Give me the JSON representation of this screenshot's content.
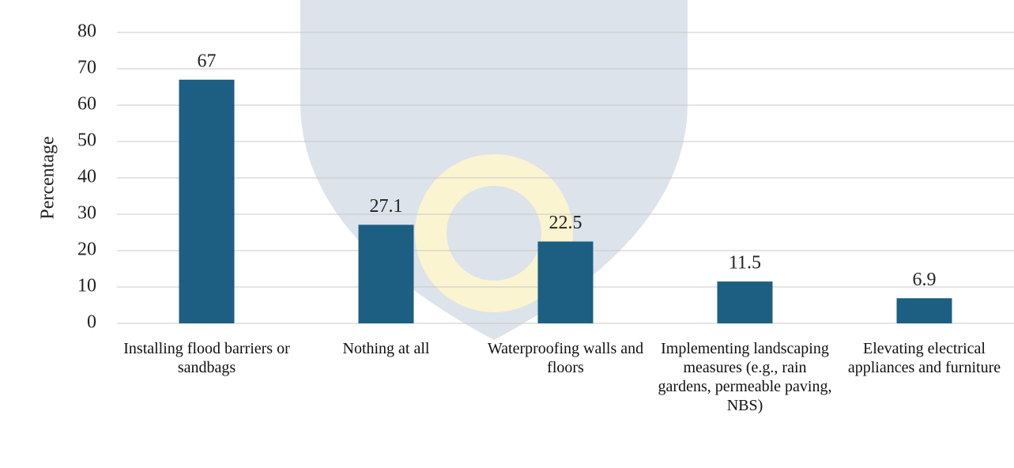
{
  "chart_data": {
    "type": "bar",
    "y_label": "Percentage",
    "categories": [
      "Installing flood barriers or sandbags",
      "Nothing at all",
      "Waterproofing walls and floors",
      "Implementing landscaping measures (e.g., rain gardens, permeable paving, NBS)",
      "Elevating electrical appliances and furniture"
    ],
    "values": [
      67,
      27.1,
      22.5,
      11.5,
      6.9
    ],
    "color": "#1c5f82",
    "ylim": [
      0,
      80
    ],
    "yticks": [
      0,
      10,
      20,
      30,
      40,
      50,
      60,
      70,
      80
    ],
    "grid": true
  }
}
